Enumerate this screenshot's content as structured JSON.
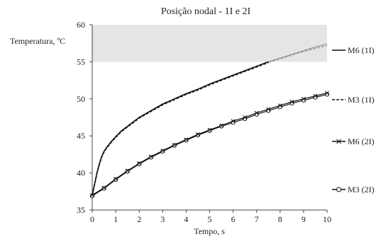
{
  "chart_data": {
    "type": "line",
    "title": "Posição nodal - 1I e 2I",
    "xlabel": "Tempo, s",
    "ylabel": "Temperatura, ºC",
    "xlim": [
      0,
      10
    ],
    "ylim": [
      35,
      60
    ],
    "x_ticks": [
      0,
      1,
      2,
      3,
      4,
      5,
      6,
      7,
      8,
      9,
      10
    ],
    "y_ticks": [
      35,
      40,
      45,
      50,
      55,
      60
    ],
    "grid": false,
    "shaded_band": {
      "y_from": 55,
      "y_to": 60,
      "color": "#e5e5e5"
    },
    "legend_position": "right",
    "colors": {
      "dark": "#111111",
      "gray": "#9a9a9a",
      "band": "#e5e5e5"
    },
    "series": [
      {
        "name": "M6 (1I)",
        "style": "solid",
        "marker": "none",
        "x": [
          0,
          0.1,
          0.2,
          0.3,
          0.4,
          0.5,
          0.6,
          0.7,
          0.8,
          1,
          1.25,
          1.5,
          1.75,
          2,
          2.5,
          3,
          3.5,
          4,
          4.5,
          5,
          5.5,
          6,
          6.5,
          7,
          7.5,
          8,
          8.5,
          9,
          9.5,
          10
        ],
        "y": [
          37.0,
          38.5,
          40.0,
          41.2,
          42.2,
          42.9,
          43.4,
          43.8,
          44.2,
          44.9,
          45.7,
          46.3,
          46.9,
          47.5,
          48.4,
          49.3,
          50.0,
          50.7,
          51.3,
          52.0,
          52.6,
          53.2,
          53.8,
          54.4,
          55.0,
          55.5,
          56.0,
          56.5,
          57.0,
          57.4
        ]
      },
      {
        "name": "M3 (1I)",
        "style": "dashed",
        "marker": "none",
        "x": [
          0,
          0.1,
          0.2,
          0.3,
          0.4,
          0.5,
          0.6,
          0.7,
          0.8,
          1,
          1.25,
          1.5,
          1.75,
          2,
          2.5,
          3,
          3.5,
          4,
          4.5,
          5,
          5.5,
          6,
          6.5,
          7,
          7.5,
          8,
          8.5,
          9,
          9.5,
          10
        ],
        "y": [
          37.0,
          38.4,
          39.9,
          41.1,
          42.1,
          42.8,
          43.3,
          43.7,
          44.1,
          44.8,
          45.6,
          46.2,
          46.8,
          47.4,
          48.3,
          49.2,
          49.9,
          50.6,
          51.2,
          51.9,
          52.5,
          53.1,
          53.7,
          54.3,
          54.9,
          55.4,
          55.9,
          56.4,
          56.8,
          57.2
        ]
      },
      {
        "name": "M6 (2I)",
        "style": "solid",
        "marker": "x",
        "x": [
          0,
          0.5,
          1,
          1.5,
          2,
          2.5,
          3,
          3.5,
          4,
          4.5,
          5,
          5.5,
          6,
          6.5,
          7,
          7.5,
          8,
          8.5,
          9,
          9.5,
          10
        ],
        "y": [
          37.0,
          38.0,
          39.2,
          40.3,
          41.3,
          42.2,
          43.0,
          43.8,
          44.5,
          45.2,
          45.8,
          46.4,
          47.0,
          47.5,
          48.1,
          48.6,
          49.1,
          49.6,
          50.0,
          50.4,
          50.8
        ]
      },
      {
        "name": "M3 (2I)",
        "style": "solid",
        "marker": "circle",
        "x": [
          0,
          0.5,
          1,
          1.5,
          2,
          2.5,
          3,
          3.5,
          4,
          4.5,
          5,
          5.5,
          6,
          6.5,
          7,
          7.5,
          8,
          8.5,
          9,
          9.5,
          10
        ],
        "y": [
          36.9,
          37.9,
          39.1,
          40.2,
          41.2,
          42.1,
          42.9,
          43.7,
          44.4,
          45.1,
          45.7,
          46.3,
          46.8,
          47.3,
          47.9,
          48.4,
          48.9,
          49.4,
          49.8,
          50.2,
          50.6
        ]
      }
    ]
  }
}
